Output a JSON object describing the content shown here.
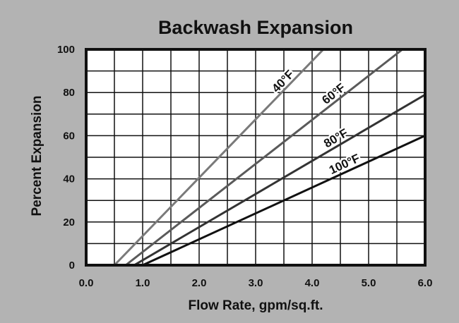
{
  "chart_data": {
    "type": "line",
    "title": "Backwash Expansion",
    "xlabel": "Flow Rate, gpm/sq.ft.",
    "ylabel": "Percent Expansion",
    "xlim": [
      0,
      6
    ],
    "ylim": [
      0,
      100
    ],
    "x_ticks": [
      "0.0",
      "1.0",
      "2.0",
      "3.0",
      "4.0",
      "5.0",
      "6.0"
    ],
    "y_ticks": [
      "0",
      "20",
      "40",
      "60",
      "80",
      "100"
    ],
    "grid": true,
    "colors": {
      "background": "#b3b3b3",
      "plot_background": "#ffffff",
      "grid": "#111111"
    },
    "series": [
      {
        "name": "40°F",
        "color": "#7a7a7a",
        "points": [
          [
            0.5,
            0
          ],
          [
            4.2,
            100
          ]
        ]
      },
      {
        "name": "60°F",
        "color": "#5a5a5a",
        "points": [
          [
            0.7,
            0
          ],
          [
            5.6,
            100
          ]
        ]
      },
      {
        "name": "80°F",
        "color": "#333333",
        "points": [
          [
            0.85,
            0
          ],
          [
            6.0,
            79
          ]
        ]
      },
      {
        "name": "100°F",
        "color": "#111111",
        "points": [
          [
            1.0,
            0
          ],
          [
            6.0,
            60
          ]
        ]
      }
    ]
  }
}
